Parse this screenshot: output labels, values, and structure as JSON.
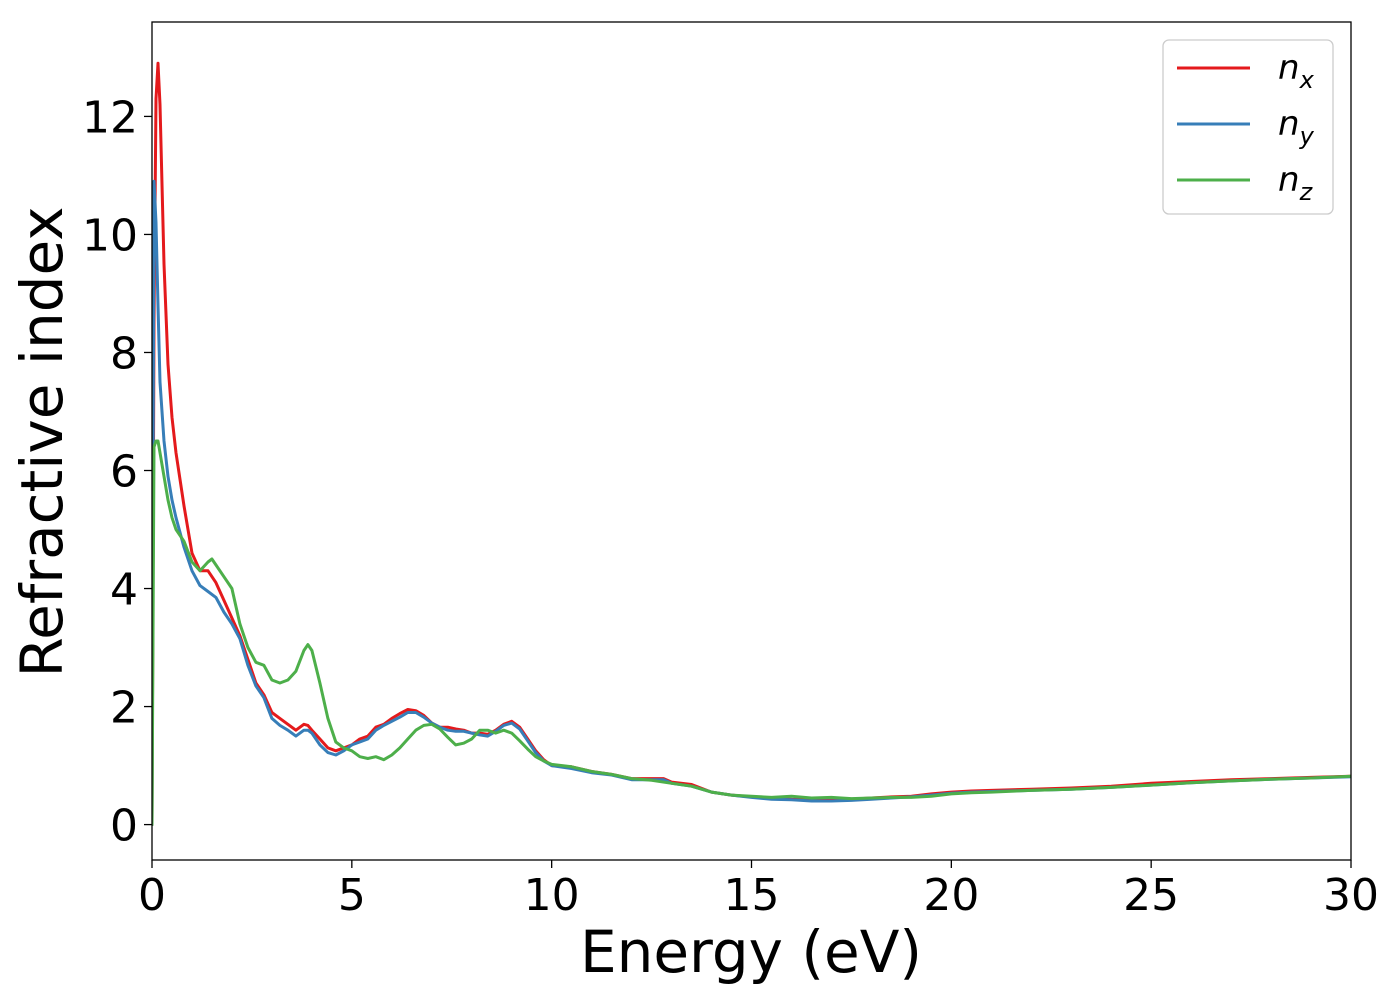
{
  "chart_data": {
    "type": "line",
    "title": "",
    "xlabel": "Energy (eV)",
    "ylabel": "Refractive index",
    "xlim": [
      0,
      30
    ],
    "ylim": [
      -0.6,
      13.6
    ],
    "xticks": [
      0,
      5,
      10,
      15,
      20,
      25,
      30
    ],
    "xtick_labels": [
      "0",
      "5",
      "10",
      "15",
      "20",
      "25",
      "30"
    ],
    "yticks": [
      0,
      2,
      4,
      6,
      8,
      10,
      12
    ],
    "ytick_labels": [
      "0",
      "2",
      "4",
      "6",
      "8",
      "10",
      "12"
    ],
    "grid": false,
    "legend_position": "top-right",
    "series": [
      {
        "name": "n_x",
        "label_main": "n",
        "label_sub": "x",
        "color": "#e41a1c",
        "x": [
          0,
          0.05,
          0.1,
          0.15,
          0.2,
          0.3,
          0.4,
          0.5,
          0.6,
          0.8,
          1.0,
          1.2,
          1.4,
          1.6,
          1.8,
          2.0,
          2.2,
          2.4,
          2.6,
          2.8,
          3.0,
          3.2,
          3.4,
          3.6,
          3.8,
          3.9,
          4.0,
          4.2,
          4.4,
          4.6,
          4.8,
          5.0,
          5.2,
          5.4,
          5.6,
          5.8,
          6.0,
          6.2,
          6.4,
          6.6,
          6.8,
          7.0,
          7.2,
          7.4,
          7.6,
          7.8,
          8.0,
          8.2,
          8.4,
          8.6,
          8.8,
          9.0,
          9.2,
          9.4,
          9.6,
          9.8,
          10.0,
          10.5,
          11.0,
          11.5,
          12.0,
          12.5,
          12.8,
          13.0,
          13.5,
          14.0,
          14.5,
          15.0,
          15.5,
          16.0,
          16.5,
          17.0,
          17.5,
          18.0,
          18.5,
          19.0,
          19.5,
          20.0,
          20.5,
          21.0,
          22.0,
          23.0,
          24.0,
          25.0,
          26.0,
          27.0,
          28.0,
          29.0,
          30.0
        ],
        "y": [
          0,
          8.5,
          12.3,
          12.9,
          12.2,
          9.5,
          7.8,
          6.9,
          6.3,
          5.4,
          4.6,
          4.3,
          4.3,
          4.1,
          3.8,
          3.5,
          3.2,
          2.8,
          2.4,
          2.2,
          1.9,
          1.8,
          1.7,
          1.6,
          1.7,
          1.68,
          1.6,
          1.45,
          1.3,
          1.25,
          1.3,
          1.35,
          1.45,
          1.5,
          1.65,
          1.7,
          1.8,
          1.88,
          1.95,
          1.93,
          1.85,
          1.72,
          1.65,
          1.65,
          1.62,
          1.6,
          1.55,
          1.55,
          1.53,
          1.6,
          1.7,
          1.75,
          1.65,
          1.45,
          1.25,
          1.1,
          1.0,
          0.98,
          0.9,
          0.85,
          0.78,
          0.78,
          0.78,
          0.72,
          0.68,
          0.55,
          0.5,
          0.47,
          0.45,
          0.43,
          0.42,
          0.42,
          0.43,
          0.45,
          0.47,
          0.48,
          0.52,
          0.55,
          0.57,
          0.58,
          0.6,
          0.62,
          0.65,
          0.7,
          0.73,
          0.76,
          0.78,
          0.8,
          0.82
        ]
      },
      {
        "name": "n_y",
        "label_main": "n",
        "label_sub": "y",
        "color": "#377eb8",
        "x": [
          0,
          0.05,
          0.1,
          0.15,
          0.2,
          0.3,
          0.4,
          0.5,
          0.6,
          0.8,
          1.0,
          1.2,
          1.4,
          1.6,
          1.8,
          2.0,
          2.2,
          2.4,
          2.6,
          2.8,
          3.0,
          3.2,
          3.4,
          3.6,
          3.8,
          3.9,
          4.0,
          4.2,
          4.4,
          4.6,
          4.8,
          5.0,
          5.2,
          5.4,
          5.6,
          5.8,
          6.0,
          6.2,
          6.4,
          6.6,
          6.8,
          7.0,
          7.2,
          7.4,
          7.6,
          7.8,
          8.0,
          8.2,
          8.4,
          8.6,
          8.8,
          9.0,
          9.2,
          9.4,
          9.6,
          9.8,
          10.0,
          10.5,
          11.0,
          11.5,
          12.0,
          12.5,
          12.8,
          13.0,
          13.5,
          14.0,
          14.5,
          15.0,
          15.5,
          16.0,
          16.5,
          17.0,
          17.5,
          18.0,
          18.5,
          19.0,
          19.5,
          20.0,
          20.5,
          21.0,
          22.0,
          23.0,
          24.0,
          25.0,
          26.0,
          27.0,
          28.0,
          29.0,
          30.0
        ],
        "y": [
          0,
          10.9,
          10.2,
          8.8,
          7.5,
          6.5,
          5.9,
          5.5,
          5.2,
          4.7,
          4.3,
          4.05,
          3.95,
          3.85,
          3.6,
          3.4,
          3.15,
          2.7,
          2.35,
          2.15,
          1.8,
          1.68,
          1.6,
          1.5,
          1.6,
          1.6,
          1.55,
          1.35,
          1.22,
          1.18,
          1.25,
          1.35,
          1.4,
          1.45,
          1.6,
          1.68,
          1.75,
          1.82,
          1.9,
          1.9,
          1.82,
          1.72,
          1.65,
          1.6,
          1.58,
          1.58,
          1.55,
          1.52,
          1.5,
          1.58,
          1.68,
          1.72,
          1.62,
          1.42,
          1.22,
          1.08,
          1.0,
          0.95,
          0.88,
          0.84,
          0.76,
          0.76,
          0.76,
          0.7,
          0.65,
          0.55,
          0.5,
          0.46,
          0.43,
          0.42,
          0.4,
          0.4,
          0.41,
          0.43,
          0.45,
          0.47,
          0.5,
          0.53,
          0.55,
          0.56,
          0.58,
          0.6,
          0.63,
          0.67,
          0.71,
          0.74,
          0.77,
          0.79,
          0.81
        ]
      },
      {
        "name": "n_z",
        "label_main": "n",
        "label_sub": "z",
        "color": "#4daf4a",
        "x": [
          0,
          0.05,
          0.1,
          0.15,
          0.2,
          0.3,
          0.4,
          0.5,
          0.6,
          0.8,
          1.0,
          1.2,
          1.4,
          1.5,
          1.6,
          1.8,
          2.0,
          2.2,
          2.4,
          2.6,
          2.8,
          3.0,
          3.2,
          3.4,
          3.6,
          3.8,
          3.9,
          4.0,
          4.2,
          4.4,
          4.6,
          4.8,
          5.0,
          5.2,
          5.4,
          5.6,
          5.8,
          6.0,
          6.2,
          6.4,
          6.6,
          6.8,
          7.0,
          7.2,
          7.4,
          7.6,
          7.8,
          8.0,
          8.2,
          8.4,
          8.6,
          8.8,
          9.0,
          9.2,
          9.4,
          9.6,
          9.8,
          10.0,
          10.5,
          11.0,
          11.5,
          12.0,
          12.5,
          13.0,
          13.5,
          14.0,
          14.5,
          15.0,
          15.5,
          16.0,
          16.5,
          17.0,
          17.5,
          18.0,
          18.5,
          19.0,
          19.5,
          20.0,
          20.5,
          21.0,
          22.0,
          23.0,
          24.0,
          25.0,
          26.0,
          27.0,
          28.0,
          29.0,
          30.0
        ],
        "y": [
          0,
          6.4,
          6.5,
          6.5,
          6.3,
          5.9,
          5.5,
          5.2,
          5.0,
          4.8,
          4.45,
          4.3,
          4.45,
          4.5,
          4.4,
          4.2,
          4.0,
          3.4,
          3.0,
          2.75,
          2.7,
          2.45,
          2.4,
          2.45,
          2.6,
          2.95,
          3.05,
          2.95,
          2.4,
          1.8,
          1.4,
          1.3,
          1.25,
          1.15,
          1.12,
          1.15,
          1.1,
          1.18,
          1.3,
          1.45,
          1.6,
          1.68,
          1.7,
          1.62,
          1.48,
          1.35,
          1.38,
          1.45,
          1.6,
          1.6,
          1.55,
          1.6,
          1.55,
          1.42,
          1.28,
          1.15,
          1.08,
          1.02,
          0.98,
          0.9,
          0.85,
          0.78,
          0.75,
          0.7,
          0.65,
          0.55,
          0.5,
          0.48,
          0.46,
          0.48,
          0.45,
          0.46,
          0.44,
          0.45,
          0.46,
          0.46,
          0.48,
          0.52,
          0.54,
          0.55,
          0.58,
          0.6,
          0.63,
          0.67,
          0.71,
          0.74,
          0.77,
          0.79,
          0.82
        ]
      }
    ]
  }
}
